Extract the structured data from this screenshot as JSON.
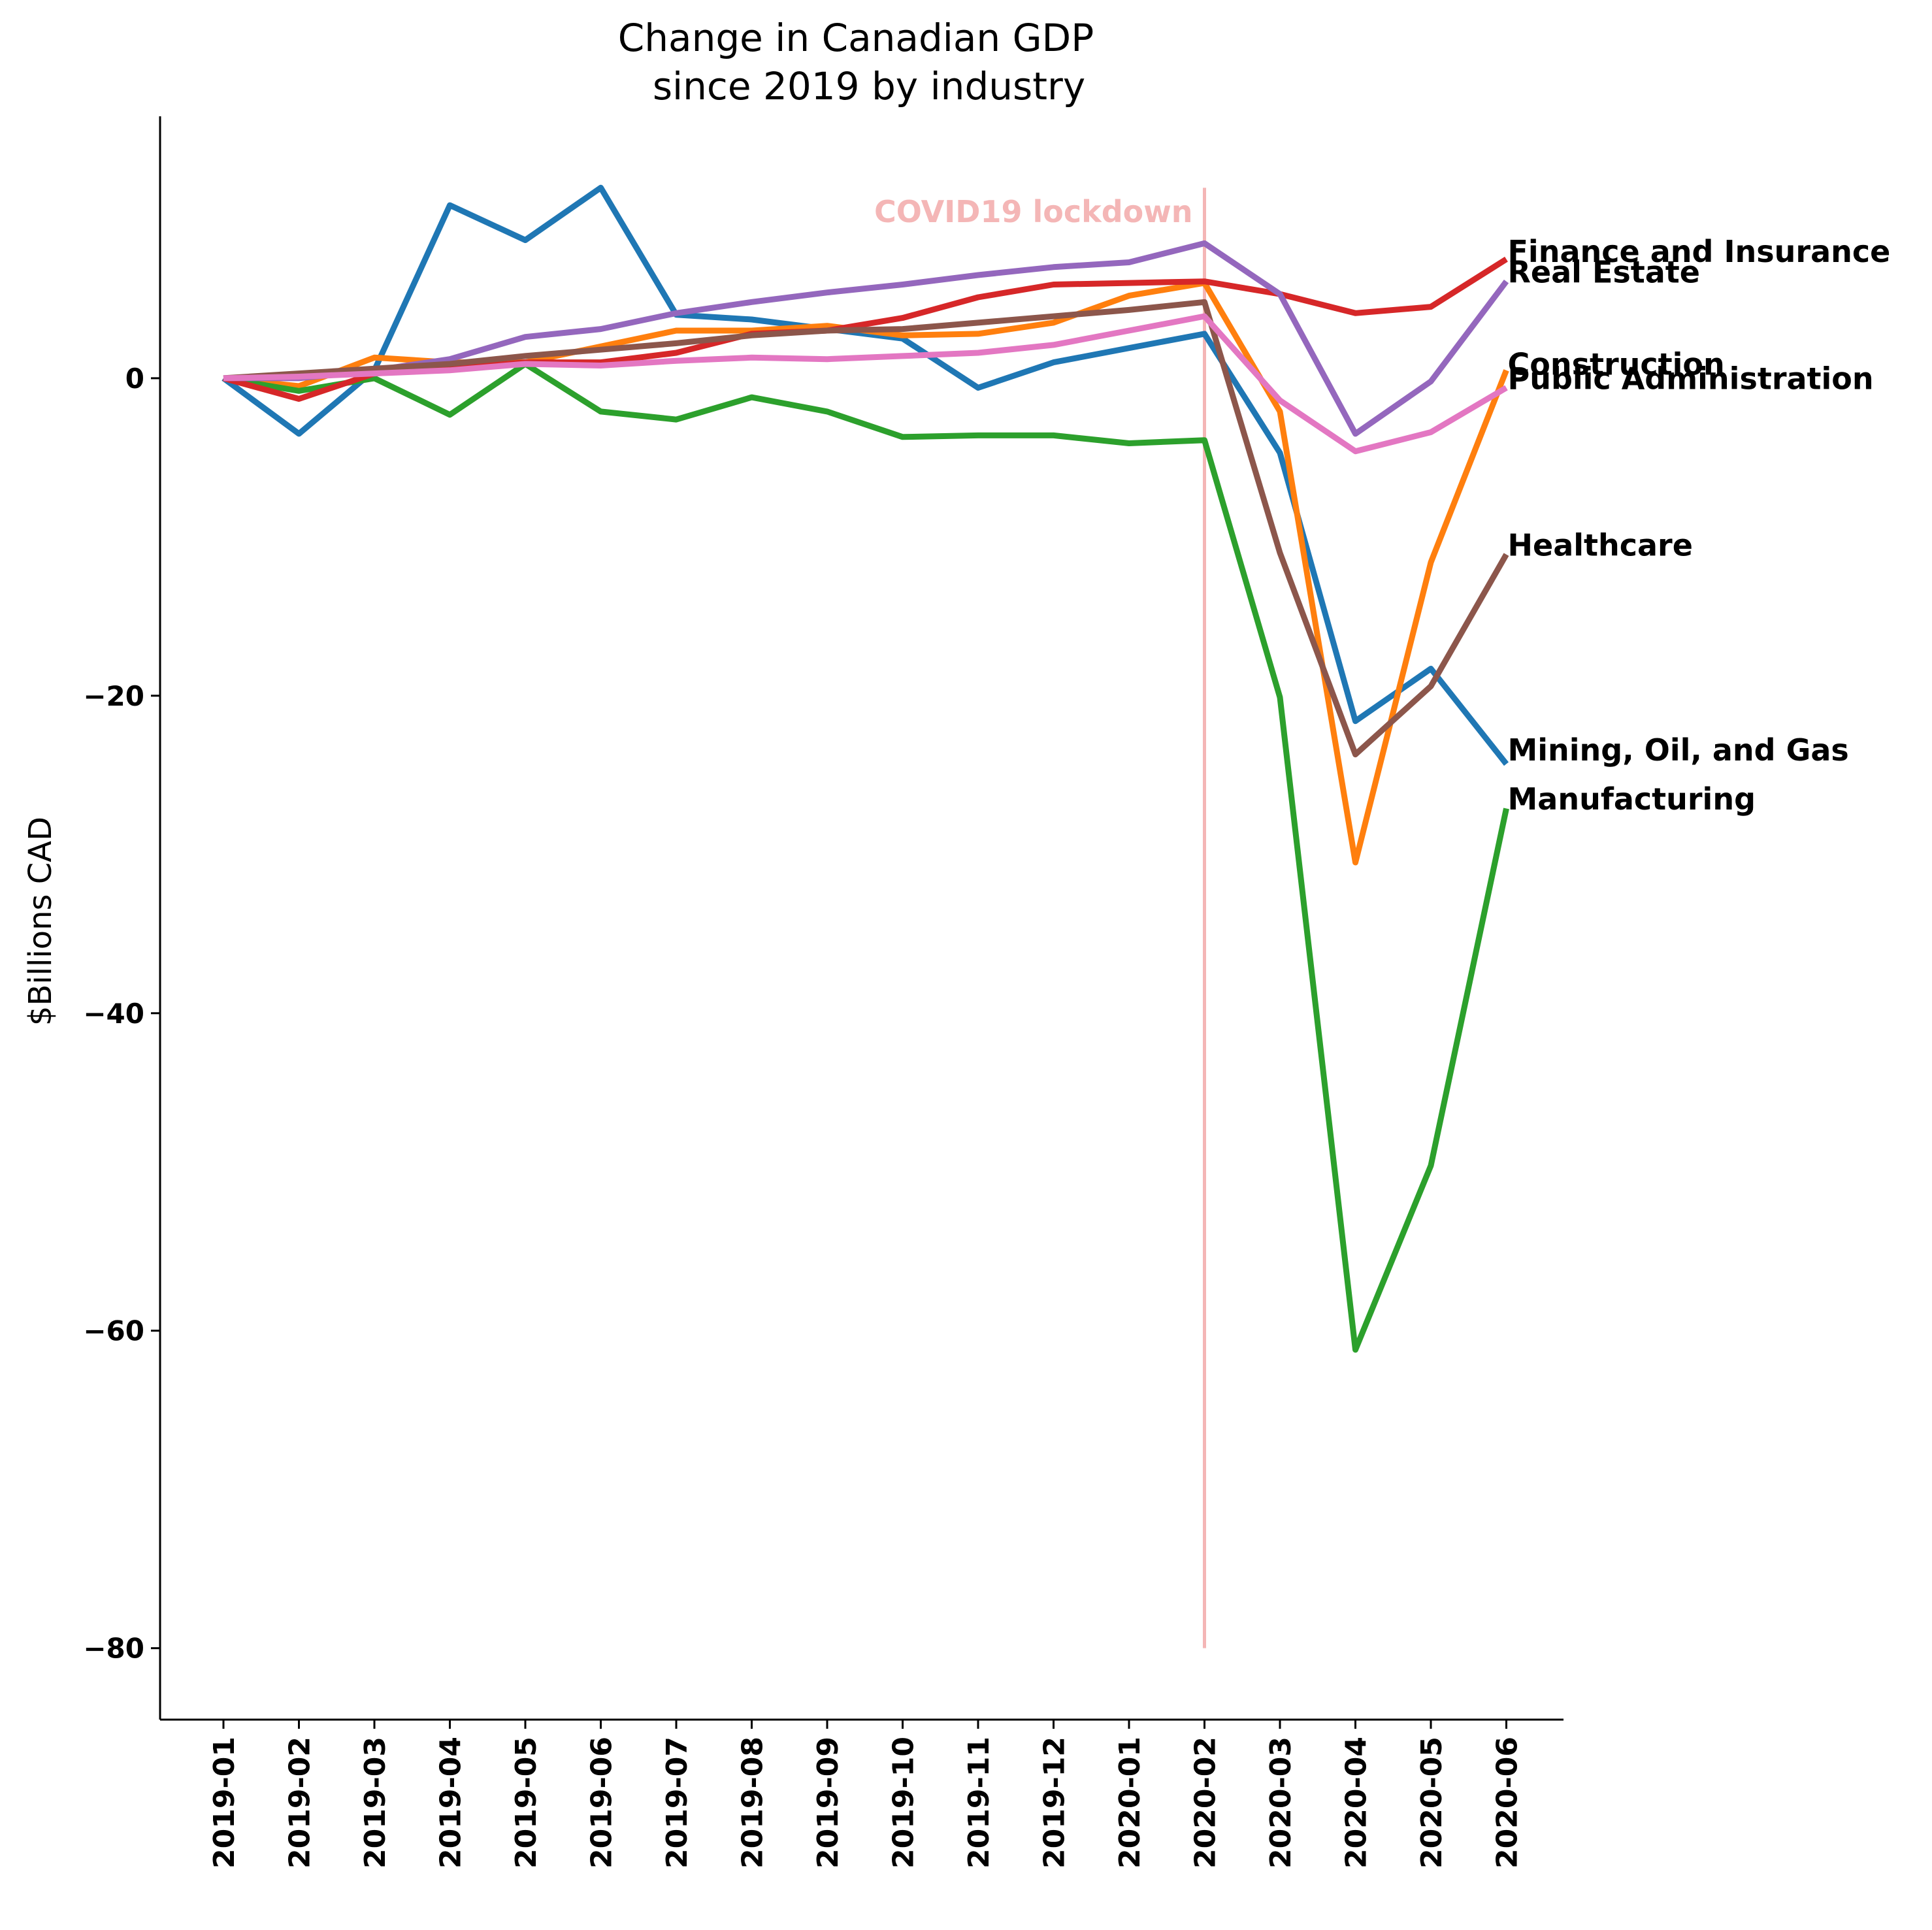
{
  "chart_data": {
    "type": "line",
    "title_line1": "Change in Canadian GDP",
    "title_line2": "since 2019 by industry",
    "xlabel": "",
    "ylabel": "$Billions CAD",
    "ylim": [
      -84.5,
      16.5
    ],
    "y_ticks": [
      0,
      -20,
      -40,
      -60,
      -80
    ],
    "y_tick_labels": [
      "0",
      "−20",
      "−40",
      "−60",
      "−80"
    ],
    "grid": false,
    "categories": [
      "2019-01",
      "2019-02",
      "2019-03",
      "2019-04",
      "2019-05",
      "2019-06",
      "2019-07",
      "2019-08",
      "2019-09",
      "2019-10",
      "2019-11",
      "2019-12",
      "2020-01",
      "2020-02",
      "2020-03",
      "2020-04",
      "2020-05",
      "2020-06"
    ],
    "annotation": {
      "text": "COVID19 lockdown",
      "x": "2020-02",
      "y_range": [
        -80,
        12
      ],
      "text_y": 10.5,
      "color": "#f4b6b6"
    },
    "series": [
      {
        "name": "Mining, Oil, and Gas",
        "color": "#1f77b4",
        "values": [
          0,
          -3.5,
          0.5,
          10.9,
          8.7,
          12.0,
          4.0,
          3.7,
          3.1,
          2.5,
          -0.6,
          1.0,
          1.9,
          2.8,
          -4.7,
          -21.6,
          -18.3,
          -24.3
        ]
      },
      {
        "name": "Construction",
        "color": "#ff7f0e",
        "values": [
          0,
          -0.5,
          1.3,
          1.0,
          1.0,
          2.0,
          3.0,
          3.0,
          3.3,
          2.7,
          2.8,
          3.5,
          5.2,
          6.0,
          -2.1,
          -30.5,
          -11.6,
          0.5
        ]
      },
      {
        "name": "Manufacturing",
        "color": "#2ca02c",
        "values": [
          0,
          -0.8,
          0.0,
          -2.3,
          0.9,
          -2.1,
          -2.6,
          -1.2,
          -2.1,
          -3.7,
          -3.6,
          -3.6,
          -4.1,
          -3.9,
          -20.1,
          -61.2,
          -49.6,
          -27.1
        ]
      },
      {
        "name": "Finance and Insurance",
        "color": "#d62728",
        "values": [
          0,
          -1.3,
          0.3,
          0.6,
          1.0,
          1.0,
          1.6,
          2.8,
          3.0,
          3.8,
          5.1,
          5.9,
          6.0,
          6.1,
          5.3,
          4.1,
          4.5,
          7.5
        ]
      },
      {
        "name": "Real Estate",
        "color": "#9467bd",
        "values": [
          0,
          0.0,
          0.5,
          1.2,
          2.6,
          3.1,
          4.1,
          4.8,
          5.4,
          5.9,
          6.5,
          7.0,
          7.3,
          8.5,
          5.3,
          -3.5,
          -0.2,
          6.1
        ]
      },
      {
        "name": "Healthcare",
        "color": "#8c564b",
        "values": [
          0,
          0.3,
          0.6,
          0.9,
          1.4,
          1.8,
          2.2,
          2.7,
          3.0,
          3.1,
          3.5,
          3.9,
          4.3,
          4.8,
          -11.0,
          -23.7,
          -19.4,
          -11.1
        ]
      },
      {
        "name": "Public Administration",
        "color": "#e377c2",
        "values": [
          0,
          0.1,
          0.3,
          0.5,
          0.9,
          0.8,
          1.1,
          1.3,
          1.2,
          1.4,
          1.6,
          2.1,
          3.0,
          3.9,
          -1.4,
          -4.6,
          -3.4,
          -0.6
        ]
      }
    ],
    "end_label_values": [
      -23.5,
      0.8,
      -26.6,
      7.9,
      6.6,
      -10.6,
      -0.1
    ]
  }
}
